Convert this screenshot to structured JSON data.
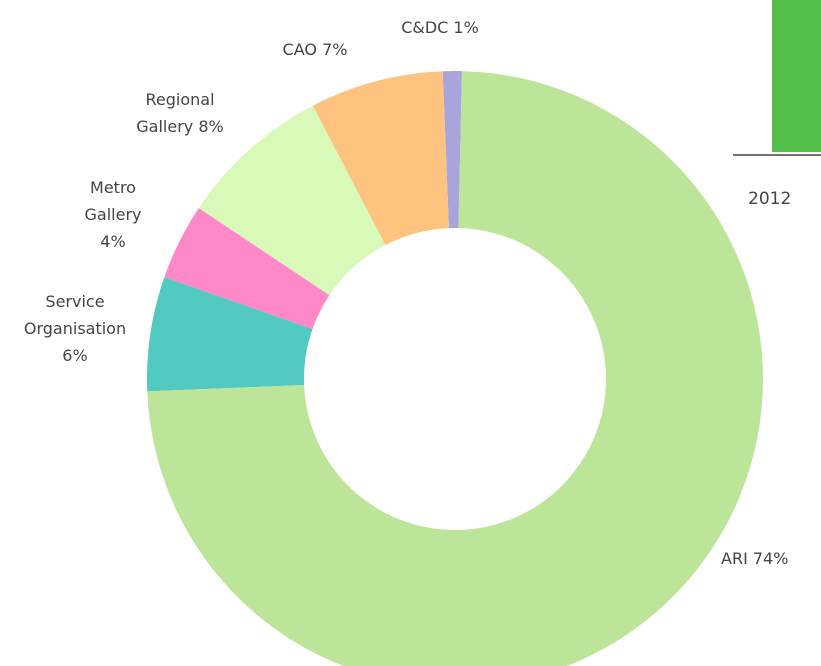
{
  "chart_data": [
    {
      "type": "donut",
      "categories": [
        "ARI",
        "Service Organisation",
        "Metro Gallery",
        "Regional Gallery",
        "CAO",
        "C&DC"
      ],
      "values": [
        74,
        6,
        4,
        8,
        7,
        1
      ],
      "value_labels": [
        "74%",
        "6%",
        "4%",
        "8%",
        "7%",
        "1%"
      ],
      "colors": [
        "#bde59a",
        "#52c9c1",
        "#ff88c8",
        "#d9f9b9",
        "#ffc380",
        "#a9a4d9"
      ]
    },
    {
      "type": "bar",
      "categories": [
        "2012"
      ],
      "color": "#52bd48"
    }
  ]
}
